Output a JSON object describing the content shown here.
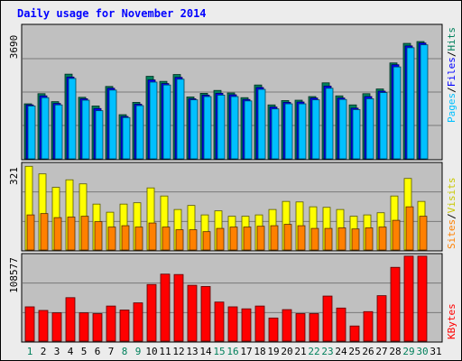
{
  "chart_data": [
    {
      "type": "bar",
      "title": "Daily usage for November 2014",
      "categories": [
        "1",
        "2",
        "3",
        "4",
        "5",
        "6",
        "7",
        "8",
        "9",
        "10",
        "11",
        "12",
        "13",
        "14",
        "15",
        "16",
        "17",
        "18",
        "19",
        "20",
        "21",
        "22",
        "23",
        "24",
        "25",
        "26",
        "27",
        "28",
        "29",
        "30",
        "31"
      ],
      "max_label": "3690",
      "side_label": [
        "Pages",
        "Files",
        "Hits"
      ],
      "ylim": [
        0,
        3690
      ],
      "series": [
        {
          "name": "Hits",
          "color": "#00805c",
          "values": [
            1520,
            1800,
            1580,
            2340,
            1700,
            1460,
            2000,
            1220,
            1560,
            2280,
            2140,
            2330,
            1710,
            1810,
            1890,
            1820,
            1690,
            2040,
            1490,
            1610,
            1620,
            1720,
            2100,
            1740,
            1490,
            1800,
            1930,
            2650,
            3190,
            3240,
            0
          ]
        },
        {
          "name": "Files",
          "color": "#0000ff",
          "values": [
            1490,
            1740,
            1530,
            2260,
            1660,
            1390,
            1950,
            1170,
            1510,
            2180,
            2080,
            2250,
            1660,
            1760,
            1810,
            1770,
            1640,
            1970,
            1430,
            1560,
            1570,
            1680,
            2010,
            1680,
            1400,
            1720,
            1870,
            2600,
            3120,
            3200,
            0
          ]
        },
        {
          "name": "Pages",
          "color": "#00c0ff",
          "values": [
            1460,
            1690,
            1490,
            2220,
            1620,
            1330,
            1900,
            1140,
            1470,
            2120,
            2040,
            2200,
            1630,
            1720,
            1760,
            1720,
            1600,
            1920,
            1380,
            1520,
            1520,
            1630,
            1950,
            1640,
            1360,
            1660,
            1830,
            2540,
            3070,
            3150,
            0
          ]
        }
      ]
    },
    {
      "type": "bar",
      "categories": [
        "1",
        "2",
        "3",
        "4",
        "5",
        "6",
        "7",
        "8",
        "9",
        "10",
        "11",
        "12",
        "13",
        "14",
        "15",
        "16",
        "17",
        "18",
        "19",
        "20",
        "21",
        "22",
        "23",
        "24",
        "25",
        "26",
        "27",
        "28",
        "29",
        "30",
        "31"
      ],
      "max_label": "321",
      "side_label": [
        "Sites",
        "Visits"
      ],
      "ylim": [
        0,
        321
      ],
      "series": [
        {
          "name": "Visits",
          "color": "#ffff00",
          "values": [
            310,
            282,
            232,
            260,
            245,
            170,
            140,
            170,
            175,
            230,
            200,
            150,
            165,
            130,
            145,
            125,
            125,
            130,
            150,
            180,
            178,
            160,
            158,
            150,
            125,
            130,
            138,
            200,
            265,
            180,
            0
          ]
        },
        {
          "name": "Sites",
          "color": "#ff8000",
          "values": [
            130,
            135,
            120,
            122,
            125,
            105,
            85,
            90,
            85,
            100,
            85,
            75,
            75,
            68,
            80,
            85,
            85,
            88,
            90,
            95,
            90,
            80,
            80,
            82,
            78,
            82,
            85,
            110,
            160,
            125,
            0
          ]
        }
      ]
    },
    {
      "type": "bar",
      "categories": [
        "1",
        "2",
        "3",
        "4",
        "5",
        "6",
        "7",
        "8",
        "9",
        "10",
        "11",
        "12",
        "13",
        "14",
        "15",
        "16",
        "17",
        "18",
        "19",
        "20",
        "21",
        "22",
        "23",
        "24",
        "25",
        "26",
        "27",
        "28",
        "29",
        "30",
        "31"
      ],
      "max_label": "108577",
      "side_label": [
        "KBytes"
      ],
      "ylim": [
        0,
        108577
      ],
      "series": [
        {
          "name": "KBytes",
          "color": "#ff0000",
          "values": [
            43000,
            38500,
            35500,
            54500,
            35500,
            34500,
            44000,
            39000,
            48000,
            71000,
            84000,
            83500,
            70000,
            68500,
            49000,
            43000,
            40500,
            44000,
            29000,
            39500,
            34500,
            34500,
            56500,
            41500,
            19000,
            37000,
            57000,
            92500,
            106500,
            106500,
            0
          ]
        }
      ]
    }
  ]
}
